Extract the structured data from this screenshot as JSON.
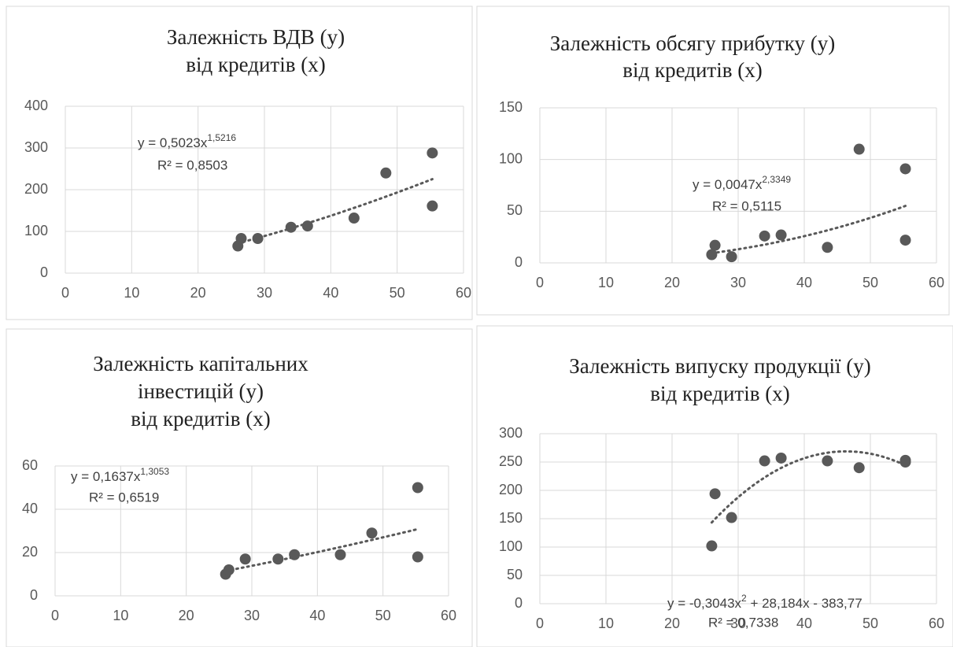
{
  "chart_data": [
    {
      "type": "scatter",
      "title": [
        "Залежність ВДВ (у)",
        "від кредитів (х)"
      ],
      "x": [
        26,
        26.5,
        29,
        34,
        36.5,
        43.5,
        48.3,
        55.3,
        55.3
      ],
      "values": [
        65,
        83,
        83,
        110,
        113,
        132,
        240,
        288,
        161
      ],
      "color": "#595959",
      "xlim": [
        0,
        60
      ],
      "xticks": [
        0,
        10,
        20,
        30,
        40,
        50,
        60
      ],
      "ylim": [
        0,
        400
      ],
      "yticks": [
        0,
        100,
        200,
        300,
        400
      ],
      "grid": true,
      "trendline": {
        "type": "power",
        "coefficients": [
          0.5023,
          1.5216
        ],
        "equation_parts": [
          "y = 0,5023x",
          "1,5216"
        ],
        "r_squared": "R² = 0,8503"
      }
    },
    {
      "type": "scatter",
      "title": [
        "Залежність обсягу прибутку  (у)",
        "від кредитів (х)"
      ],
      "x": [
        26,
        26.5,
        29,
        34,
        36.5,
        43.5,
        48.3,
        55.3,
        55.3
      ],
      "values": [
        8,
        17,
        6,
        26,
        27,
        15,
        110,
        91,
        22
      ],
      "color": "#595959",
      "xlim": [
        0,
        60
      ],
      "xticks": [
        0,
        10,
        20,
        30,
        40,
        50,
        60
      ],
      "ylim": [
        0,
        150
      ],
      "yticks": [
        0,
        50,
        100,
        150
      ],
      "grid": true,
      "trendline": {
        "type": "power",
        "coefficients": [
          0.0047,
          2.3349
        ],
        "equation_parts": [
          "y = 0,0047x",
          "2,3349"
        ],
        "r_squared": "R² = 0,5115"
      }
    },
    {
      "type": "scatter",
      "title": [
        "Залежність капітальних",
        "інвестицій (у)",
        "від кредитів (х)"
      ],
      "x": [
        26,
        26.5,
        29,
        34,
        36.5,
        43.5,
        48.3,
        55.3,
        55.3
      ],
      "values": [
        10,
        12,
        17,
        17,
        19,
        19,
        29,
        50,
        18
      ],
      "color": "#595959",
      "xlim": [
        0,
        60
      ],
      "xticks": [
        0,
        10,
        20,
        30,
        40,
        50,
        60
      ],
      "ylim": [
        0,
        60
      ],
      "yticks": [
        0,
        20,
        40,
        60
      ],
      "grid": true,
      "trendline": {
        "type": "power",
        "coefficients": [
          0.1637,
          1.3053
        ],
        "equation_parts": [
          "y = 0,1637x",
          "1,3053"
        ],
        "r_squared": "R² = 0,6519"
      }
    },
    {
      "type": "scatter",
      "title": [
        "Залежність випуску продукції (у)",
        "від кредитів (х)"
      ],
      "x": [
        26,
        26.5,
        29,
        34,
        36.5,
        43.5,
        48.3,
        55.3,
        55.3
      ],
      "values": [
        102,
        194,
        152,
        252,
        257,
        252,
        240,
        253,
        250
      ],
      "color": "#595959",
      "xlim": [
        0,
        60
      ],
      "xticks": [
        0,
        10,
        20,
        30,
        40,
        50,
        60
      ],
      "ylim": [
        0,
        300
      ],
      "yticks": [
        0,
        50,
        100,
        150,
        200,
        250,
        300
      ],
      "grid": true,
      "trendline": {
        "type": "polynomial",
        "coefficients": [
          -383.77,
          28.184,
          -0.3043
        ],
        "equation_parts": [
          "y = -0,3043x",
          "2",
          " + 28,184x - 383,77"
        ],
        "r_squared": "R² = 0,7338"
      }
    }
  ]
}
